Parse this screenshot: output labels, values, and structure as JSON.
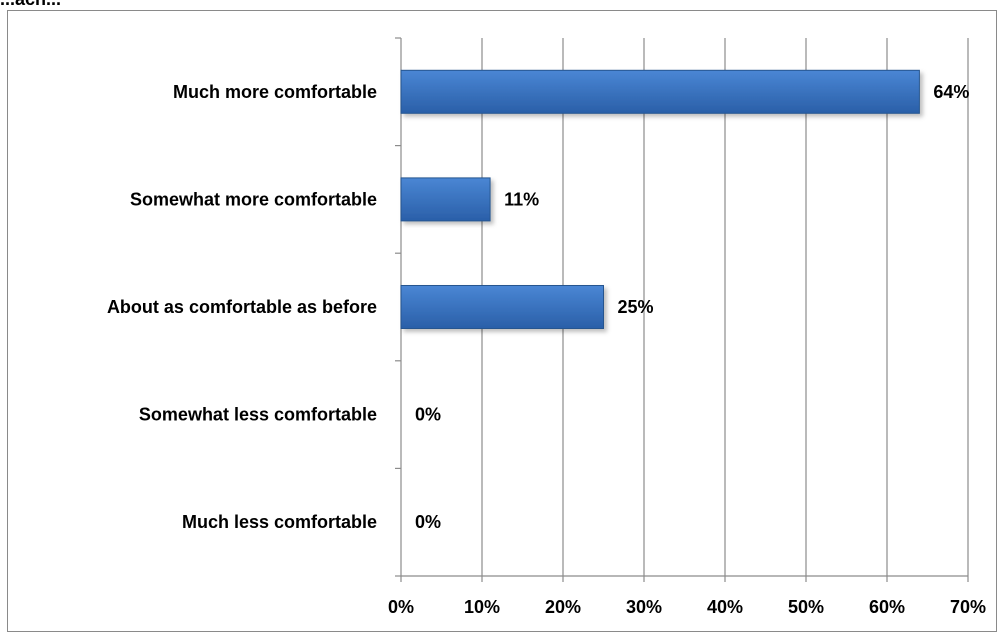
{
  "top_fragment": "...ach...",
  "chart_data": {
    "type": "bar",
    "orientation": "horizontal",
    "title": "",
    "xlabel": "",
    "ylabel": "",
    "categories": [
      "Much more comfortable",
      "Somewhat more comfortable",
      "About as comfortable as before",
      "Somewhat less comfortable",
      "Much less comfortable"
    ],
    "values": [
      64,
      11,
      25,
      0,
      0
    ],
    "value_labels": [
      "64%",
      "11%",
      "25%",
      "0%",
      "0%"
    ],
    "x_ticks": [
      0,
      10,
      20,
      30,
      40,
      50,
      60,
      70
    ],
    "x_tick_labels": [
      "0%",
      "10%",
      "20%",
      "30%",
      "40%",
      "50%",
      "60%",
      "70%"
    ],
    "xlim": [
      0,
      70
    ],
    "grid": "vertical",
    "legend": "none",
    "colors": {
      "bar_top": "#4a86d4",
      "bar_bottom": "#2a5fa8",
      "bar_edge": "#25558f",
      "grid": "#8c8c8c",
      "axis": "#8c8c8c"
    }
  }
}
